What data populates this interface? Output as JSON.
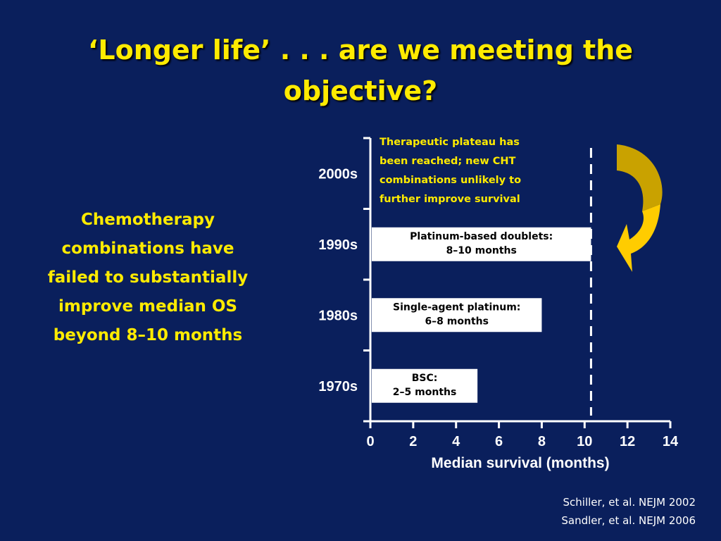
{
  "slide": {
    "title_line1": "‘Longer life’ . . . are we meeting the",
    "title_line2": "objective?",
    "left_text": [
      "Chemotherapy",
      "combinations have",
      "failed to substantially",
      "improve median OS",
      "beyond 8–10 months"
    ],
    "references": [
      "Schiller, et al. NEJM 2002",
      "Sandler, et al. NEJM 2006"
    ]
  },
  "chart_data": {
    "type": "bar",
    "orientation": "horizontal",
    "categories": [
      "1970s",
      "1980s",
      "1990s",
      "2000s"
    ],
    "values": [
      5,
      8,
      10.3,
      null
    ],
    "bar_labels": [
      [
        "BSC:",
        "2–5 months"
      ],
      [
        "Single-agent platinum:",
        "6–8 months"
      ],
      [
        "Platinum-based doublets:",
        "8–10 months"
      ],
      []
    ],
    "xlabel": "Median survival (months)",
    "xlim": [
      0,
      14
    ],
    "xticks": [
      0,
      2,
      4,
      6,
      8,
      10,
      12,
      14
    ],
    "reference_line": {
      "x": 10.3,
      "style": "dashed"
    },
    "annotation": [
      "Therapeutic plateau has",
      "been reached; new CHT",
      "combinations unlikely to",
      "further improve survival"
    ],
    "colors": {
      "background": "#0a1f5c",
      "bars": "#ffffff",
      "text_accent": "#ffeb00",
      "arrow": "#ffcc00",
      "arrow_dark": "#c9a200"
    }
  }
}
